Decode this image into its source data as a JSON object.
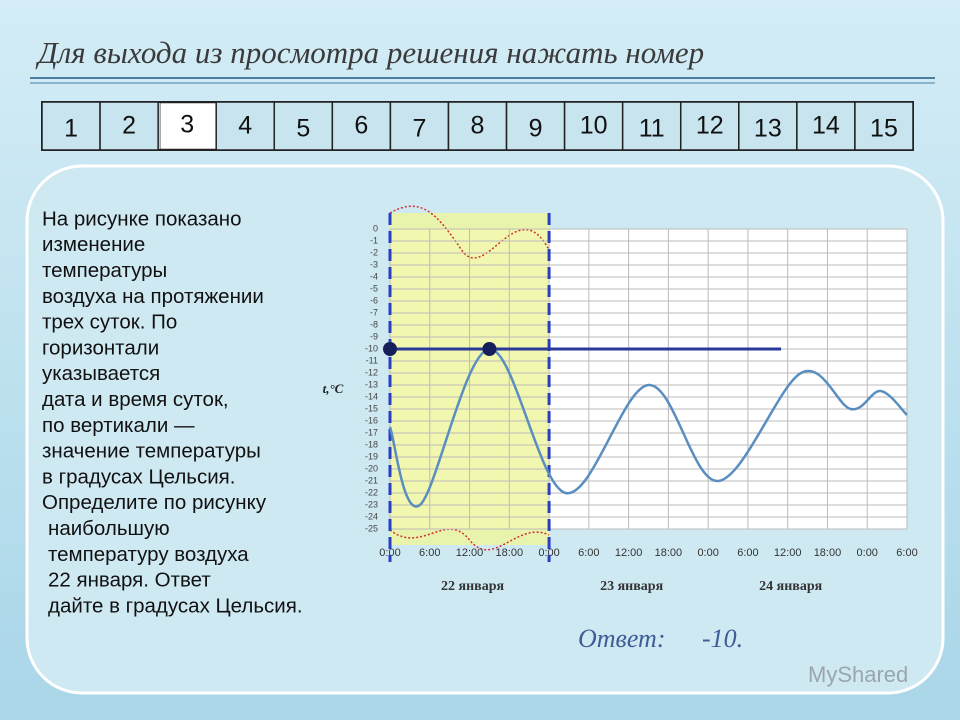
{
  "header": {
    "title": "Для выхода из просмотра решения нажать номер"
  },
  "nav": [
    "1",
    "2",
    "3",
    "4",
    "5",
    "6",
    "7",
    "8",
    "9",
    "10",
    "11",
    "12",
    "13",
    "14",
    "15"
  ],
  "nav_active": 2,
  "problem_lines": [
    "На рисунке показано",
    "изменение",
    "температуры",
    "воздуха на протяжении",
    "трех суток. По",
    "горизонтали",
    "указывается",
    "дата и время суток,",
    "по вертикали —",
    "значение температуры",
    "в градусах Цельсия.",
    "Определите по рисунку",
    "наибольшую",
    "температуру воздуха",
    "22 января. Ответ",
    "дайте в градусах Цельсия."
  ],
  "answer": {
    "label": "Ответ:",
    "value": "-10."
  },
  "watermark": "MyShared",
  "chart_data": {
    "type": "line",
    "y_label": "t,°C",
    "x": [
      0,
      4.5,
      15,
      26.5,
      39,
      49.5,
      62,
      69.5,
      74,
      78
    ],
    "series": [
      {
        "color": "#5a8ec0",
        "values": [
          -16.5,
          -23,
          -10,
          -22,
          -13,
          -21,
          -12,
          -15,
          -13.5,
          -15.5
        ]
      }
    ],
    "xlim": [
      0,
      78
    ],
    "xticks": [
      {
        "value": 0,
        "label": "0:00"
      },
      {
        "value": 6,
        "label": "6:00"
      },
      {
        "value": 12,
        "label": "12:00"
      },
      {
        "value": 18,
        "label": "18:00"
      },
      {
        "value": 24,
        "label": "0:00"
      },
      {
        "value": 30,
        "label": "6:00"
      },
      {
        "value": 36,
        "label": "12:00"
      },
      {
        "value": 42,
        "label": "18:00"
      },
      {
        "value": 48,
        "label": "0:00"
      },
      {
        "value": 54,
        "label": "6:00"
      },
      {
        "value": 60,
        "label": "12:00"
      },
      {
        "value": 66,
        "label": "18:00"
      },
      {
        "value": 72,
        "label": "0:00"
      },
      {
        "value": 78,
        "label": "6:00"
      }
    ],
    "ylim": [
      -25,
      0
    ],
    "yticks": [
      0,
      -1,
      -2,
      -3,
      -4,
      -5,
      -6,
      -7,
      -8,
      -9,
      -10,
      -11,
      -12,
      -13,
      -14,
      -15,
      -16,
      -17,
      -18,
      -19,
      -20,
      -21,
      -22,
      -23,
      -24,
      -25
    ],
    "day_labels": [
      "22 января",
      "23 января",
      "24 января"
    ],
    "highlight_range": [
      0,
      24
    ],
    "reference_line": {
      "value": -10,
      "x_range": [
        0,
        59
      ],
      "points": [
        0,
        15
      ]
    },
    "grid": true
  }
}
